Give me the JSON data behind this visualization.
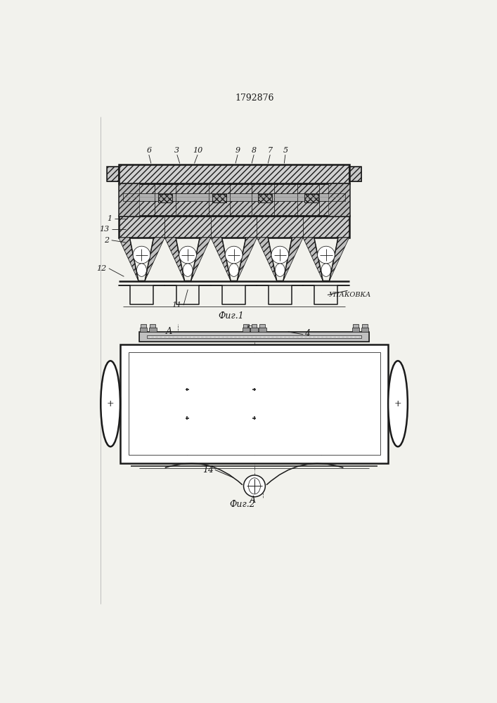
{
  "title": "1792876",
  "bg_color": "#f2f2ed",
  "line_color": "#1a1a1a",
  "fig1_caption": "Фиг.1",
  "fig2_caption": "Фиг.2",
  "upak_label": "УПАКОВКА",
  "lw_main": 1.1,
  "lw_thick": 1.8,
  "lw_thin": 0.55
}
